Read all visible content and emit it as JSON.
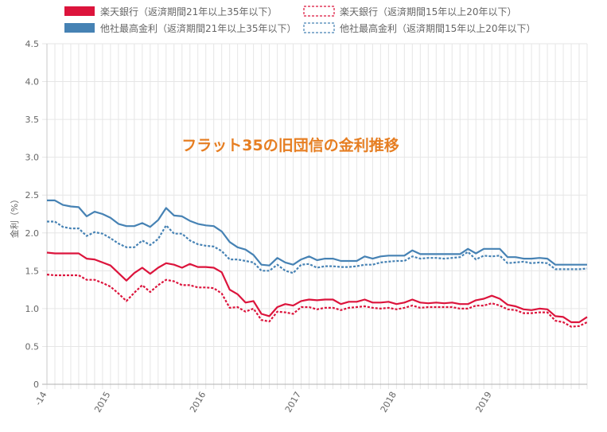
{
  "chart_data": {
    "type": "line",
    "title": "フラット35の旧団信の金利推移",
    "ylabel": "金利（%）",
    "xlabel": "",
    "ylim": [
      0,
      4.5
    ],
    "yticks": [
      "0",
      "0.5",
      "1.0",
      "1.5",
      "2.0",
      "2.5",
      "3.0",
      "3.5",
      "4.0",
      "4.5"
    ],
    "xticks": [
      "-14",
      "2015",
      "2016",
      "2017",
      "2018",
      "2019"
    ],
    "x_start": "2014-05",
    "x_end": "2019-12",
    "grid": true,
    "legend_position": "top",
    "series": [
      {
        "name": "楽天銀行（返済期間21年以上35年以下）",
        "color": "#dc143c",
        "style": "solid",
        "values": [
          1.74,
          1.73,
          1.73,
          1.73,
          1.73,
          1.66,
          1.65,
          1.61,
          1.57,
          1.47,
          1.37,
          1.47,
          1.54,
          1.46,
          1.54,
          1.6,
          1.58,
          1.54,
          1.59,
          1.55,
          1.55,
          1.54,
          1.48,
          1.25,
          1.19,
          1.08,
          1.1,
          0.93,
          0.9,
          1.02,
          1.06,
          1.04,
          1.1,
          1.12,
          1.11,
          1.12,
          1.12,
          1.06,
          1.09,
          1.09,
          1.12,
          1.08,
          1.08,
          1.09,
          1.06,
          1.08,
          1.12,
          1.08,
          1.07,
          1.08,
          1.07,
          1.08,
          1.06,
          1.06,
          1.11,
          1.13,
          1.17,
          1.13,
          1.05,
          1.03,
          0.99,
          0.98,
          1.0,
          0.99,
          0.9,
          0.89,
          0.82,
          0.82,
          0.89
        ]
      },
      {
        "name": "楽天銀行（返済期間15年以上20年以下）",
        "color": "#dc143c",
        "style": "dashed",
        "values": [
          1.45,
          1.44,
          1.44,
          1.44,
          1.44,
          1.38,
          1.38,
          1.34,
          1.29,
          1.2,
          1.1,
          1.21,
          1.31,
          1.22,
          1.31,
          1.38,
          1.36,
          1.31,
          1.31,
          1.28,
          1.28,
          1.27,
          1.2,
          1.01,
          1.02,
          0.96,
          1.0,
          0.85,
          0.83,
          0.96,
          0.95,
          0.93,
          1.02,
          1.02,
          0.99,
          1.01,
          1.01,
          0.98,
          1.01,
          1.02,
          1.03,
          1.01,
          1.0,
          1.01,
          0.99,
          1.01,
          1.04,
          1.01,
          1.02,
          1.02,
          1.02,
          1.02,
          1.0,
          1.0,
          1.04,
          1.04,
          1.07,
          1.04,
          0.99,
          0.98,
          0.94,
          0.94,
          0.95,
          0.95,
          0.84,
          0.82,
          0.76,
          0.77,
          0.82
        ]
      },
      {
        "name": "他社最高金利（返済期間21年以上35年以下）",
        "color": "#4682b4",
        "style": "solid",
        "values": [
          2.43,
          2.43,
          2.37,
          2.35,
          2.34,
          2.22,
          2.28,
          2.25,
          2.2,
          2.12,
          2.09,
          2.09,
          2.13,
          2.08,
          2.17,
          2.33,
          2.23,
          2.22,
          2.16,
          2.12,
          2.1,
          2.09,
          2.02,
          1.88,
          1.81,
          1.78,
          1.71,
          1.58,
          1.57,
          1.67,
          1.61,
          1.58,
          1.65,
          1.69,
          1.64,
          1.66,
          1.66,
          1.63,
          1.63,
          1.63,
          1.69,
          1.66,
          1.69,
          1.7,
          1.7,
          1.7,
          1.77,
          1.72,
          1.72,
          1.72,
          1.72,
          1.72,
          1.72,
          1.79,
          1.73,
          1.79,
          1.79,
          1.79,
          1.68,
          1.68,
          1.66,
          1.66,
          1.67,
          1.66,
          1.58,
          1.58,
          1.58,
          1.58,
          1.58
        ]
      },
      {
        "name": "他社最高金利（返済期間15年以上20年以下）",
        "color": "#4682b4",
        "style": "dashed",
        "values": [
          2.15,
          2.15,
          2.08,
          2.06,
          2.06,
          1.96,
          2.01,
          1.99,
          1.93,
          1.86,
          1.81,
          1.81,
          1.9,
          1.84,
          1.92,
          2.1,
          1.99,
          1.99,
          1.9,
          1.85,
          1.83,
          1.82,
          1.76,
          1.65,
          1.65,
          1.63,
          1.61,
          1.5,
          1.5,
          1.58,
          1.5,
          1.47,
          1.58,
          1.59,
          1.54,
          1.56,
          1.56,
          1.55,
          1.55,
          1.56,
          1.58,
          1.58,
          1.61,
          1.62,
          1.63,
          1.63,
          1.69,
          1.66,
          1.67,
          1.67,
          1.66,
          1.67,
          1.68,
          1.75,
          1.65,
          1.7,
          1.69,
          1.7,
          1.6,
          1.61,
          1.62,
          1.6,
          1.61,
          1.6,
          1.52,
          1.52,
          1.52,
          1.52,
          1.53
        ]
      }
    ]
  }
}
